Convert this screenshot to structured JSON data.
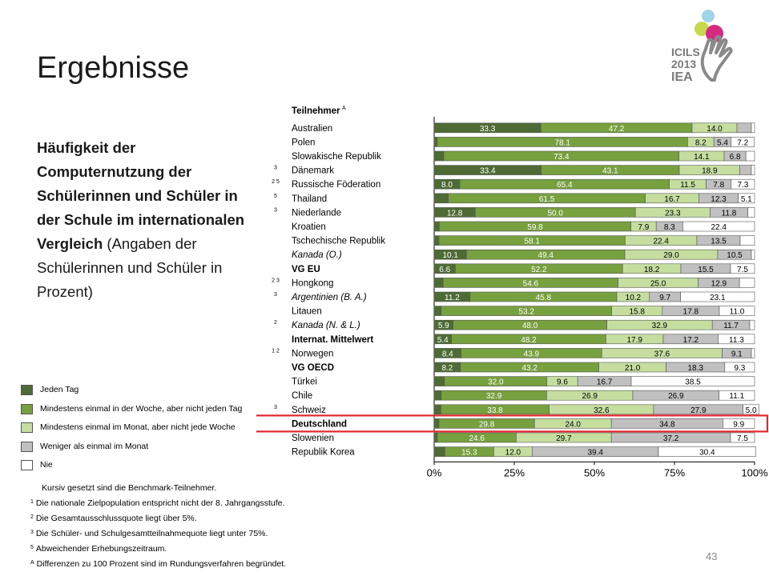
{
  "slide": {
    "title": "Ergebnisse",
    "description_bold": "Häufigkeit der Computernutzung der Schülerinnen und Schüler in der Schule im internationalen Vergleich",
    "description_normal": "(Angaben der Schülerinnen und Schüler in Prozent)",
    "page_number": "43"
  },
  "logo": {
    "line1": "ICILS",
    "line2": "2013",
    "line3": "IEA"
  },
  "footnotes": [
    {
      "mark": "",
      "text": "Kursiv gesetzt sind die Benchmark-Teilnehmer."
    },
    {
      "mark": "1",
      "text": "Die nationale Zielpopulation entspricht nicht der 8. Jahrgangsstufe."
    },
    {
      "mark": "2",
      "text": "Die Gesamtausschlussquote liegt über 5%."
    },
    {
      "mark": "3",
      "text": "Die Schüler- und Schulgesamtteilnahmequote liegt unter 75%."
    },
    {
      "mark": "5",
      "text": "Abweichender Erhebungszeitraum."
    },
    {
      "mark": "A",
      "text": "Differenzen zu 100 Prozent sind im Rundungsverfahren begründet."
    }
  ],
  "colors": {
    "jeden_tag": "#4e6b35",
    "woche": "#77a03f",
    "monat": "#c5dea0",
    "weniger": "#c0c0c0",
    "nie": "#ffffff",
    "highlight": "#e0282e"
  },
  "chart_data": {
    "type": "bar",
    "orientation": "horizontal",
    "stacked": true,
    "participants_header": "Teilnehmer",
    "participants_header_mark": "A",
    "highlighted": "Deutschland",
    "xlim": [
      0,
      100
    ],
    "xticks": [
      "0%",
      "25%",
      "50%",
      "75%",
      "100%"
    ],
    "series": [
      {
        "name": "Jeden Tag",
        "color_key": "jeden_tag"
      },
      {
        "name": "Mindestens einmal in der Woche, aber nicht jeden Tag",
        "color_key": "woche"
      },
      {
        "name": "Mindestens einmal im Monat, aber nicht jede Woche",
        "color_key": "monat"
      },
      {
        "name": "Weniger als einmal im Monat",
        "color_key": "weniger"
      },
      {
        "name": "Nie",
        "color_key": "nie"
      }
    ],
    "rows": [
      {
        "label": "Australien",
        "notes": "",
        "style": "normal",
        "values": [
          33.3,
          47.2,
          14.0,
          4.5,
          1.0
        ],
        "labels": [
          "33.3",
          "47.2",
          "14.0",
          "",
          ""
        ]
      },
      {
        "label": "Polen",
        "notes": "",
        "style": "normal",
        "values": [
          1.0,
          78.1,
          8.2,
          5.4,
          7.2
        ],
        "labels": [
          "",
          "78.1",
          "8.2",
          "5.4",
          "7.2"
        ]
      },
      {
        "label": "Slowakische Republik",
        "notes": "",
        "style": "normal",
        "values": [
          3.0,
          73.4,
          14.1,
          6.8,
          2.7
        ],
        "labels": [
          "",
          "73.4",
          "14.1",
          "6.8",
          ""
        ]
      },
      {
        "label": "Dänemark",
        "notes": "3",
        "style": "normal",
        "values": [
          33.4,
          43.1,
          18.9,
          3.6,
          1.0
        ],
        "labels": [
          "33.4",
          "43.1",
          "18.9",
          "",
          ""
        ]
      },
      {
        "label": "Russische Föderation",
        "notes": "2  5",
        "style": "normal",
        "values": [
          8.0,
          65.4,
          11.5,
          7.8,
          7.3
        ],
        "labels": [
          "8.0",
          "65.4",
          "11.5",
          "7.8",
          "7.3"
        ]
      },
      {
        "label": "Thailand",
        "notes": "5",
        "style": "normal",
        "values": [
          4.4,
          61.5,
          16.7,
          12.3,
          5.1
        ],
        "labels": [
          "",
          "61.5",
          "16.7",
          "12.3",
          "5.1"
        ]
      },
      {
        "label": "Niederlande",
        "notes": "3",
        "style": "normal",
        "values": [
          12.8,
          50.0,
          23.3,
          11.8,
          2.1
        ],
        "labels": [
          "12.8",
          "50.0",
          "23.3",
          "11.8",
          ""
        ]
      },
      {
        "label": "Kroatien",
        "notes": "",
        "style": "normal",
        "values": [
          1.6,
          59.8,
          7.9,
          8.3,
          22.4
        ],
        "labels": [
          "",
          "59.8",
          "7.9",
          "8.3",
          "22.4"
        ]
      },
      {
        "label": "Tschechische Republik",
        "notes": "",
        "style": "normal",
        "values": [
          1.5,
          58.1,
          22.4,
          13.5,
          4.5
        ],
        "labels": [
          "",
          "58.1",
          "22.4",
          "13.5",
          ""
        ]
      },
      {
        "label": "Kanada (O.)",
        "notes": "",
        "style": "italic",
        "values": [
          10.1,
          49.4,
          29.0,
          10.5,
          1.0
        ],
        "labels": [
          "10.1",
          "49.4",
          "29.0",
          "10.5",
          ""
        ]
      },
      {
        "label": "VG EU",
        "notes": "",
        "style": "bold",
        "values": [
          6.6,
          52.2,
          18.2,
          15.5,
          7.5
        ],
        "labels": [
          "6.6",
          "52.2",
          "18.2",
          "15.5",
          "7.5"
        ]
      },
      {
        "label": "Hongkong",
        "notes": "2  3",
        "style": "normal",
        "values": [
          2.8,
          54.6,
          25.0,
          12.9,
          4.7
        ],
        "labels": [
          "",
          "54.6",
          "25.0",
          "12.9",
          ""
        ]
      },
      {
        "label": "Argentinien (B. A.)",
        "notes": "3",
        "style": "italic",
        "values": [
          11.2,
          45.8,
          10.2,
          9.7,
          23.1
        ],
        "labels": [
          "11.2",
          "45.8",
          "10.2",
          "9.7",
          "23.1"
        ]
      },
      {
        "label": "Litauen",
        "notes": "",
        "style": "normal",
        "values": [
          2.2,
          53.2,
          15.8,
          17.8,
          11.0
        ],
        "labels": [
          "",
          "53.2",
          "15.8",
          "17.8",
          "11.0"
        ]
      },
      {
        "label": "Kanada (N. & L.)",
        "notes": "2",
        "style": "italic",
        "values": [
          5.9,
          48.0,
          32.9,
          11.7,
          1.5
        ],
        "labels": [
          "5.9",
          "48.0",
          "32.9",
          "11.7",
          ""
        ]
      },
      {
        "label": "Internat. Mittelwert",
        "notes": "",
        "style": "bold",
        "values": [
          5.4,
          48.2,
          17.9,
          17.2,
          11.3
        ],
        "labels": [
          "5.4",
          "48.2",
          "17.9",
          "17.2",
          "11.3"
        ]
      },
      {
        "label": "Norwegen",
        "notes": "1  2",
        "style": "normal",
        "values": [
          8.4,
          43.9,
          37.6,
          9.1,
          1.0
        ],
        "labels": [
          "8.4",
          "43.9",
          "37.6",
          "9.1",
          ""
        ]
      },
      {
        "label": "VG OECD",
        "notes": "",
        "style": "bold",
        "values": [
          8.2,
          43.2,
          21.0,
          18.3,
          9.3
        ],
        "labels": [
          "8.2",
          "43.2",
          "21.0",
          "18.3",
          "9.3"
        ]
      },
      {
        "label": "Türkei",
        "notes": "",
        "style": "normal",
        "values": [
          3.2,
          32.0,
          9.6,
          16.7,
          38.5
        ],
        "labels": [
          "",
          "32.0",
          "9.6",
          "16.7",
          "38.5"
        ]
      },
      {
        "label": "Chile",
        "notes": "",
        "style": "normal",
        "values": [
          2.2,
          32.9,
          26.9,
          26.9,
          11.1
        ],
        "labels": [
          "",
          "32.9",
          "26.9",
          "26.9",
          "11.1"
        ]
      },
      {
        "label": "Schweiz",
        "notes": "3",
        "style": "normal",
        "values": [
          2.1,
          33.8,
          32.6,
          27.9,
          5.0
        ],
        "labels": [
          "",
          "33.8",
          "32.6",
          "27.9",
          "5.0"
        ]
      },
      {
        "label": "Deutschland",
        "notes": "",
        "style": "bold",
        "values": [
          1.5,
          29.8,
          24.0,
          34.8,
          9.9
        ],
        "labels": [
          "",
          "29.8",
          "24.0",
          "34.8",
          "9.9"
        ]
      },
      {
        "label": "Slowenien",
        "notes": "",
        "style": "normal",
        "values": [
          1.0,
          24.6,
          29.7,
          37.2,
          7.5
        ],
        "labels": [
          "",
          "24.6",
          "29.7",
          "37.2",
          "7.5"
        ]
      },
      {
        "label": "Republik Korea",
        "notes": "",
        "style": "normal",
        "values": [
          3.3,
          15.3,
          12.0,
          39.4,
          30.4
        ],
        "labels": [
          "",
          "15.3",
          "12.0",
          "39.4",
          "30.4"
        ]
      }
    ]
  }
}
